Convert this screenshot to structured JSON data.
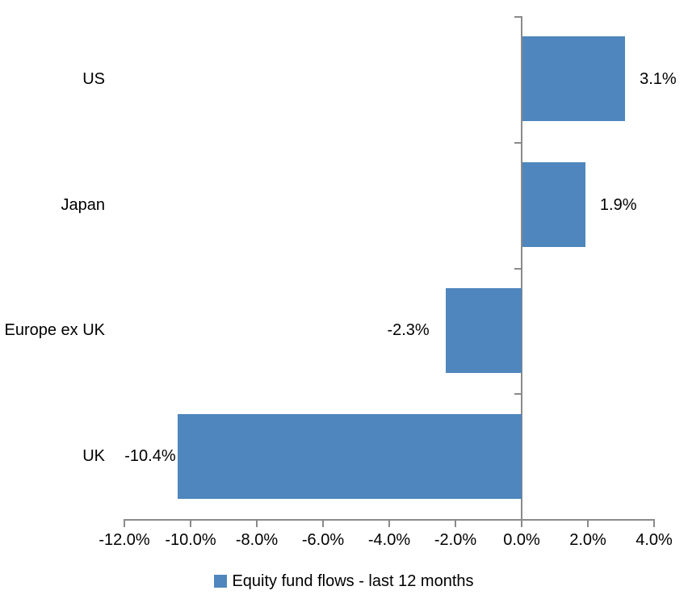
{
  "chart_data": {
    "type": "bar",
    "orientation": "horizontal",
    "categories": [
      "US",
      "Japan",
      "Europe ex UK",
      "UK"
    ],
    "series": [
      {
        "name": "Equity fund flows - last 12 months",
        "values": [
          3.1,
          1.9,
          -2.3,
          -10.4
        ],
        "value_labels": [
          "3.1%",
          "1.9%",
          "-2.3%",
          "-10.4%"
        ],
        "color": "#4E86BD"
      }
    ],
    "title": "",
    "xlabel": "",
    "ylabel": "",
    "xlim": [
      -12,
      4
    ],
    "x_tick_values": [
      -12,
      -10,
      -8,
      -6,
      -4,
      -2,
      0,
      2,
      4
    ],
    "x_tick_labels": [
      "-12.0%",
      "-10.0%",
      "-8.0%",
      "-6.0%",
      "-4.0%",
      "-2.0%",
      "0.0%",
      "2.0%",
      "4.0%"
    ],
    "grid": "off",
    "legend": {
      "position": "bottom",
      "entries": [
        "Equity fund flows - last 12 months"
      ]
    },
    "colors": {
      "bar": "#4E86BD",
      "axis": "#8A8A8A",
      "text": "#000000",
      "background": "#FFFFFF"
    }
  }
}
